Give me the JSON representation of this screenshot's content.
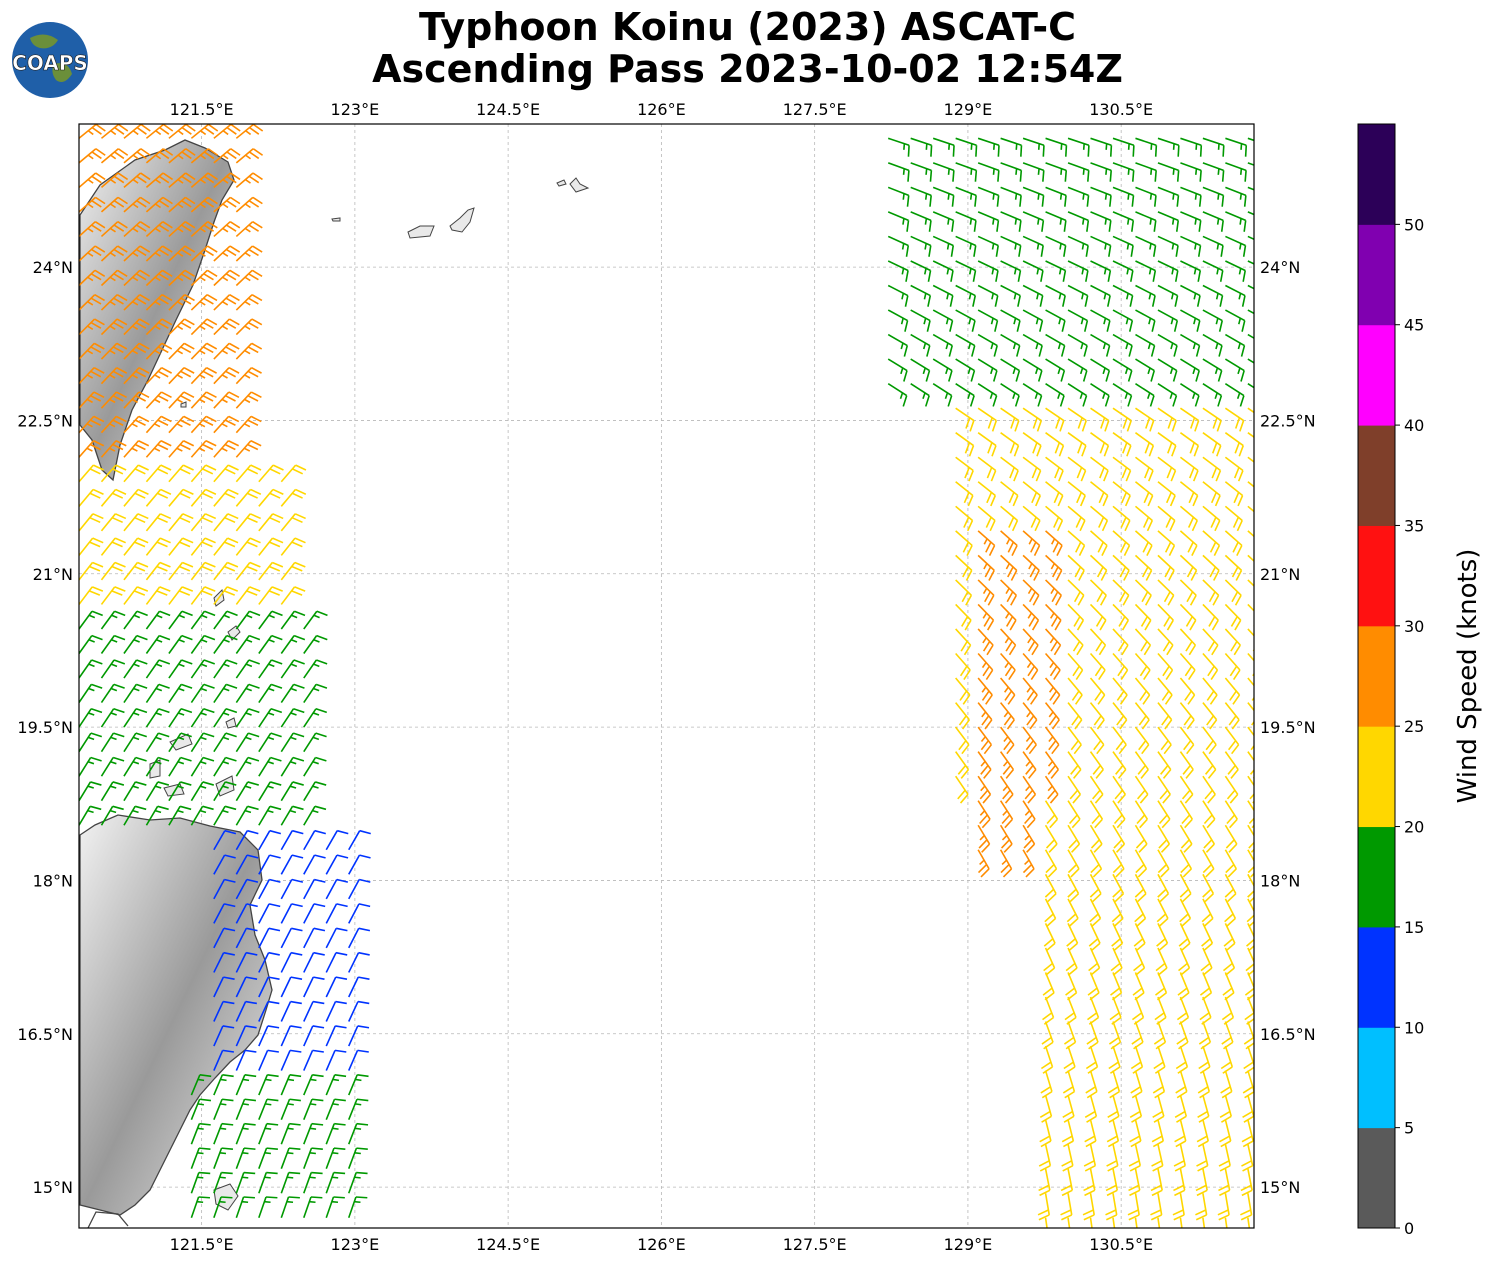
{
  "title": {
    "line1": "Typhoon Koinu (2023) ASCAT-C",
    "line2": "Ascending Pass 2023-10-02 12:54Z"
  },
  "logo": {
    "text": "COAPS",
    "icon": "globe-icon"
  },
  "map": {
    "lon_range": [
      120.3,
      131.8
    ],
    "lat_range": [
      14.6,
      25.4
    ],
    "lon_ticks": [
      {
        "value": 121.5,
        "label": "121.5°E"
      },
      {
        "value": 123,
        "label": "123°E"
      },
      {
        "value": 124.5,
        "label": "124.5°E"
      },
      {
        "value": 126,
        "label": "126°E"
      },
      {
        "value": 127.5,
        "label": "127.5°E"
      },
      {
        "value": 129,
        "label": "129°E"
      },
      {
        "value": 130.5,
        "label": "130.5°E"
      }
    ],
    "lat_ticks": [
      {
        "value": 24,
        "label": "24°N"
      },
      {
        "value": 22.5,
        "label": "22.5°N"
      },
      {
        "value": 21,
        "label": "21°N"
      },
      {
        "value": 19.5,
        "label": "19.5°N"
      },
      {
        "value": 18,
        "label": "18°N"
      },
      {
        "value": 16.5,
        "label": "16.5°N"
      },
      {
        "value": 15,
        "label": "15°N"
      }
    ],
    "grid": true,
    "land_color": "#e9e9e9",
    "coast_color": "#444444"
  },
  "colorbar": {
    "label": "Wind Speed (knots)",
    "ticks": [
      "0",
      "5",
      "10",
      "15",
      "20",
      "25",
      "30",
      "35",
      "40",
      "45",
      "50"
    ],
    "bins": [
      {
        "min": 0,
        "max": 5,
        "color": "#5a5a5a"
      },
      {
        "min": 5,
        "max": 10,
        "color": "#00bfff"
      },
      {
        "min": 10,
        "max": 15,
        "color": "#0033ff"
      },
      {
        "min": 15,
        "max": 20,
        "color": "#009900"
      },
      {
        "min": 20,
        "max": 25,
        "color": "#ffd700"
      },
      {
        "min": 25,
        "max": 30,
        "color": "#ff8c00"
      },
      {
        "min": 30,
        "max": 35,
        "color": "#ff1111"
      },
      {
        "min": 35,
        "max": 40,
        "color": "#7f3f2a"
      },
      {
        "min": 40,
        "max": 45,
        "color": "#ff00ff"
      },
      {
        "min": 45,
        "max": 50,
        "color": "#8000b0"
      },
      {
        "min": 50,
        "max": 55,
        "color": "#2c0058"
      }
    ]
  },
  "wind_swaths": [
    {
      "name": "west",
      "speed_zones": [
        {
          "lat_min": 22.0,
          "lat_max": 25.4,
          "lon_min": 120.3,
          "lon_max": 122.0,
          "speed": 27
        },
        {
          "lat_min": 20.5,
          "lat_max": 22.0,
          "lon_min": 120.3,
          "lon_max": 122.3,
          "speed": 24
        },
        {
          "lat_min": 18.5,
          "lat_max": 20.5,
          "lon_min": 120.3,
          "lon_max": 122.6,
          "speed": 18
        },
        {
          "lat_min": 16.0,
          "lat_max": 18.5,
          "lon_min": 121.6,
          "lon_max": 123.0,
          "speed": 12
        },
        {
          "lat_min": 14.6,
          "lat_max": 16.0,
          "lon_min": 121.2,
          "lon_max": 123.1,
          "speed": 16
        }
      ]
    },
    {
      "name": "east",
      "speed_zones": [
        {
          "lat_min": 22.8,
          "lat_max": 25.4,
          "lon_min": 128.0,
          "lon_max": 131.8,
          "speed": 17
        },
        {
          "lat_min": 19.0,
          "lat_max": 22.8,
          "lon_min": 128.8,
          "lon_max": 131.8,
          "speed": 23
        },
        {
          "lat_min": 18.2,
          "lat_max": 21.6,
          "lon_min": 128.9,
          "lon_max": 129.9,
          "speed": 27
        },
        {
          "lat_min": 14.6,
          "lat_max": 19.0,
          "lon_min": 129.6,
          "lon_max": 131.8,
          "speed": 21
        }
      ]
    }
  ]
}
